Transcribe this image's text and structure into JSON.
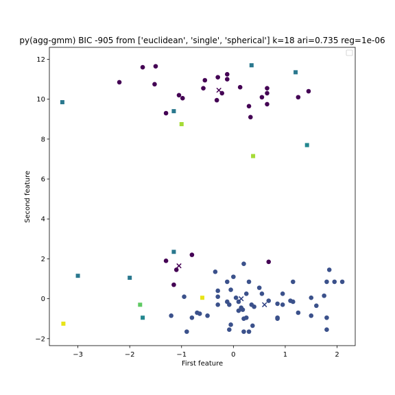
{
  "chart_data": {
    "type": "scatter",
    "title": "py(agg-gmm) BIC -905 from ['euclidean', 'single', 'spherical'] k=18 ari=0.735 reg=1e-06",
    "xlabel": "First feature",
    "ylabel": "Second feature",
    "xlim": [
      -3.55,
      2.35
    ],
    "ylim": [
      -2.35,
      12.6
    ],
    "xticks": [
      -3,
      -2,
      -1,
      0,
      1,
      2
    ],
    "yticks": [
      -2,
      0,
      2,
      4,
      6,
      8,
      10,
      12
    ],
    "grid": false,
    "legend": "top-right (empty)",
    "colors": {
      "dark_purple": "#440154",
      "purple_blue": "#3b518b",
      "navy": "#2c3e80",
      "teal": "#23878f",
      "teal_blue": "#2a788e",
      "green": "#3bbb75",
      "light_green": "#5ec962",
      "yellow_green": "#a5db36",
      "yellow": "#e8e419",
      "yellow_bright": "#fde725"
    },
    "series": [
      {
        "marker": "circle",
        "color": "#440154",
        "points": [
          [
            -2.2,
            10.85
          ],
          [
            -1.75,
            11.6
          ],
          [
            -1.5,
            11.65
          ],
          [
            -1.52,
            10.75
          ],
          [
            -1.3,
            9.3
          ],
          [
            -1.05,
            10.2
          ],
          [
            -0.98,
            10.05
          ],
          [
            -0.55,
            10.95
          ],
          [
            -0.58,
            10.55
          ],
          [
            -0.32,
            9.95
          ],
          [
            -0.3,
            11.1
          ],
          [
            -0.22,
            10.3
          ],
          [
            -0.12,
            11.25
          ],
          [
            -0.12,
            11.0
          ],
          [
            0.13,
            10.6
          ],
          [
            0.3,
            9.65
          ],
          [
            0.33,
            9.1
          ],
          [
            0.55,
            10.1
          ],
          [
            0.65,
            10.55
          ],
          [
            0.65,
            10.3
          ],
          [
            0.65,
            9.75
          ],
          [
            1.25,
            10.1
          ],
          [
            1.45,
            10.4
          ],
          [
            -1.3,
            1.9
          ],
          [
            -1.15,
            0.7
          ],
          [
            -1.1,
            1.45
          ],
          [
            -0.8,
            2.2
          ],
          [
            0.68,
            1.85
          ]
        ]
      },
      {
        "marker": "circle",
        "color": "#3b518b",
        "points": [
          [
            -1.2,
            -0.85
          ],
          [
            -0.95,
            0.1
          ],
          [
            -0.8,
            -0.95
          ],
          [
            -0.7,
            -0.7
          ],
          [
            -0.65,
            -0.75
          ],
          [
            -0.5,
            -0.85
          ],
          [
            -0.35,
            1.35
          ],
          [
            -0.3,
            -0.3
          ],
          [
            -0.3,
            0.1
          ],
          [
            -0.3,
            0.4
          ],
          [
            -0.12,
            0.85
          ],
          [
            -0.12,
            -0.15
          ],
          [
            -0.08,
            -0.3
          ],
          [
            -0.05,
            0.45
          ],
          [
            -0.05,
            -1.3
          ],
          [
            -0.08,
            -1.55
          ],
          [
            0.0,
            1.1
          ],
          [
            0.05,
            0.05
          ],
          [
            0.1,
            -0.15
          ],
          [
            0.15,
            -0.45
          ],
          [
            0.18,
            -0.55
          ],
          [
            0.2,
            -1.0
          ],
          [
            0.2,
            1.75
          ],
          [
            0.25,
            -0.95
          ],
          [
            0.2,
            -1.65
          ],
          [
            0.3,
            0.85
          ],
          [
            0.35,
            -0.3
          ],
          [
            0.37,
            -1.35
          ],
          [
            0.4,
            -0.4
          ],
          [
            0.5,
            0.55
          ],
          [
            0.55,
            0.25
          ],
          [
            0.68,
            -0.1
          ],
          [
            0.85,
            -0.95
          ],
          [
            0.85,
            -1.0
          ],
          [
            0.85,
            -0.25
          ],
          [
            0.95,
            0.25
          ],
          [
            0.95,
            -0.3
          ],
          [
            1.1,
            -0.1
          ],
          [
            1.15,
            0.85
          ],
          [
            1.15,
            -0.15
          ],
          [
            1.25,
            -0.7
          ],
          [
            1.5,
            -0.85
          ],
          [
            1.5,
            0.05
          ],
          [
            1.6,
            -0.35
          ],
          [
            1.75,
            0.15
          ],
          [
            1.8,
            -0.95
          ],
          [
            1.8,
            -1.55
          ],
          [
            1.8,
            0.85
          ],
          [
            1.85,
            1.45
          ],
          [
            1.95,
            0.85
          ],
          [
            2.1,
            0.85
          ],
          [
            -0.9,
            -1.65
          ],
          [
            0.3,
            -1.65
          ],
          [
            0.25,
            0.25
          ],
          [
            0.1,
            -0.6
          ]
        ]
      },
      {
        "marker": "square",
        "color": "#2a788e",
        "points": [
          [
            -3.3,
            9.85
          ],
          [
            -1.15,
            9.4
          ],
          [
            0.35,
            11.7
          ],
          [
            1.2,
            11.35
          ],
          [
            -3.0,
            1.15
          ],
          [
            -1.15,
            2.35
          ],
          [
            -2.0,
            1.05
          ]
        ]
      },
      {
        "marker": "square",
        "color": "#23878f",
        "points": [
          [
            -1.75,
            -0.95
          ],
          [
            1.42,
            7.7
          ]
        ]
      },
      {
        "marker": "square",
        "color": "#5ec962",
        "points": [
          [
            -1.8,
            -0.3
          ]
        ]
      },
      {
        "marker": "square",
        "color": "#a5db36",
        "points": [
          [
            -1.0,
            8.75
          ],
          [
            0.38,
            7.15
          ]
        ]
      },
      {
        "marker": "square",
        "color": "#e8e419",
        "points": [
          [
            -3.28,
            -1.25
          ],
          [
            -0.6,
            0.05
          ]
        ]
      },
      {
        "marker": "x",
        "color": "#440154",
        "points": [
          [
            -0.28,
            10.45
          ],
          [
            -1.05,
            1.65
          ]
        ]
      },
      {
        "marker": "x",
        "color": "#2c3e80",
        "points": [
          [
            0.15,
            0.0
          ],
          [
            0.6,
            -0.3
          ]
        ]
      }
    ]
  }
}
